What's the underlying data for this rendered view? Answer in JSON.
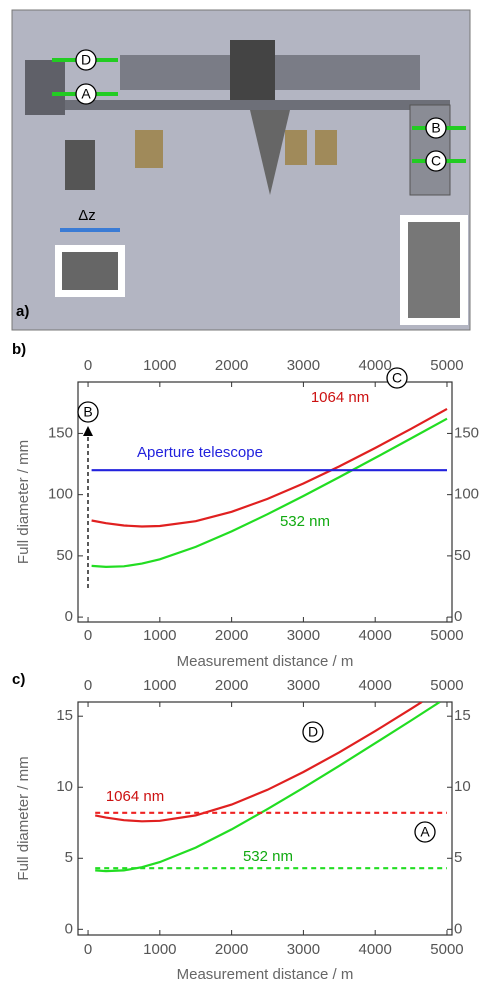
{
  "panel_a": {
    "label": "a)",
    "markers": [
      "D",
      "A",
      "B",
      "C"
    ],
    "dz": "Δz"
  },
  "chart_data": [
    {
      "type": "line",
      "panel": "b)",
      "xlabel": "Measurement distance / m",
      "ylabel": "Full diameter / mm",
      "xlim": [
        -140,
        5070
      ],
      "ylim": [
        -4,
        192
      ],
      "xticks": [
        0,
        1000,
        2000,
        3000,
        4000,
        5000
      ],
      "yticks": [
        0,
        50,
        100,
        150
      ],
      "series": [
        {
          "color": "#e02020",
          "x": [
            50,
            250,
            500,
            750,
            1000,
            1500,
            2000,
            2500,
            3000,
            3500,
            4000,
            4500,
            5000
          ],
          "values": [
            78.9,
            76.7,
            74.8,
            74.0,
            74.4,
            78.3,
            86.0,
            96.5,
            109.1,
            123.1,
            138.1,
            153.8,
            170
          ]
        },
        {
          "color": "#22dd22",
          "x": [
            50,
            250,
            500,
            750,
            1000,
            1500,
            2000,
            2500,
            3000,
            3500,
            4000,
            4500,
            5000
          ],
          "values": [
            41.8,
            41.0,
            41.5,
            43.7,
            47.2,
            57.3,
            70.0,
            84.0,
            98.9,
            114.3,
            130.0,
            145.9,
            162
          ]
        },
        {
          "color": "#2222dd",
          "x": [
            50,
            5000
          ],
          "values": [
            120,
            120
          ]
        }
      ],
      "annotations": [
        {
          "text": "B",
          "color": "#000000"
        },
        {
          "text": "C",
          "color": "#000000"
        },
        {
          "text": "1064 nm",
          "color": "#cc1111"
        },
        {
          "text": "532 nm",
          "color": "#11aa11"
        },
        {
          "text": "Aperture telescope",
          "color": "#2222dd"
        }
      ]
    },
    {
      "type": "line",
      "panel": "c)",
      "xlabel": "Measurement distance / m",
      "ylabel": "Full diameter / mm",
      "xlim": [
        -140,
        5070
      ],
      "ylim": [
        -0.4,
        16
      ],
      "xticks": [
        0,
        1000,
        2000,
        3000,
        4000,
        5000
      ],
      "yticks": [
        0,
        5,
        10,
        15
      ],
      "series": [
        {
          "color": "#e02020",
          "x": [
            100,
            250,
            500,
            750,
            1000,
            1500,
            2000,
            2500,
            3000,
            3500,
            4000,
            4500,
            4650
          ],
          "values": [
            8.02,
            7.86,
            7.68,
            7.6,
            7.64,
            8.02,
            8.78,
            9.82,
            11.07,
            12.46,
            13.95,
            15.52,
            16
          ]
        },
        {
          "color": "#22dd22",
          "x": [
            100,
            250,
            500,
            750,
            1000,
            1500,
            2000,
            2500,
            3000,
            3500,
            4000,
            4500,
            4900
          ],
          "values": [
            4.15,
            4.1,
            4.15,
            4.37,
            4.73,
            5.75,
            7.03,
            8.46,
            9.96,
            11.51,
            13.1,
            14.7,
            16
          ]
        },
        {
          "color": "#ee2222",
          "dashed": true,
          "x": [
            100,
            5000
          ],
          "values": [
            8.2,
            8.2
          ]
        },
        {
          "color": "#22dd22",
          "dashed": true,
          "x": [
            100,
            5000
          ],
          "values": [
            4.3,
            4.3
          ]
        }
      ],
      "annotations": [
        {
          "text": "D",
          "color": "#000000"
        },
        {
          "text": "A",
          "color": "#000000"
        },
        {
          "text": "1064 nm",
          "color": "#cc1111"
        },
        {
          "text": "532 nm",
          "color": "#11aa11"
        }
      ]
    }
  ]
}
